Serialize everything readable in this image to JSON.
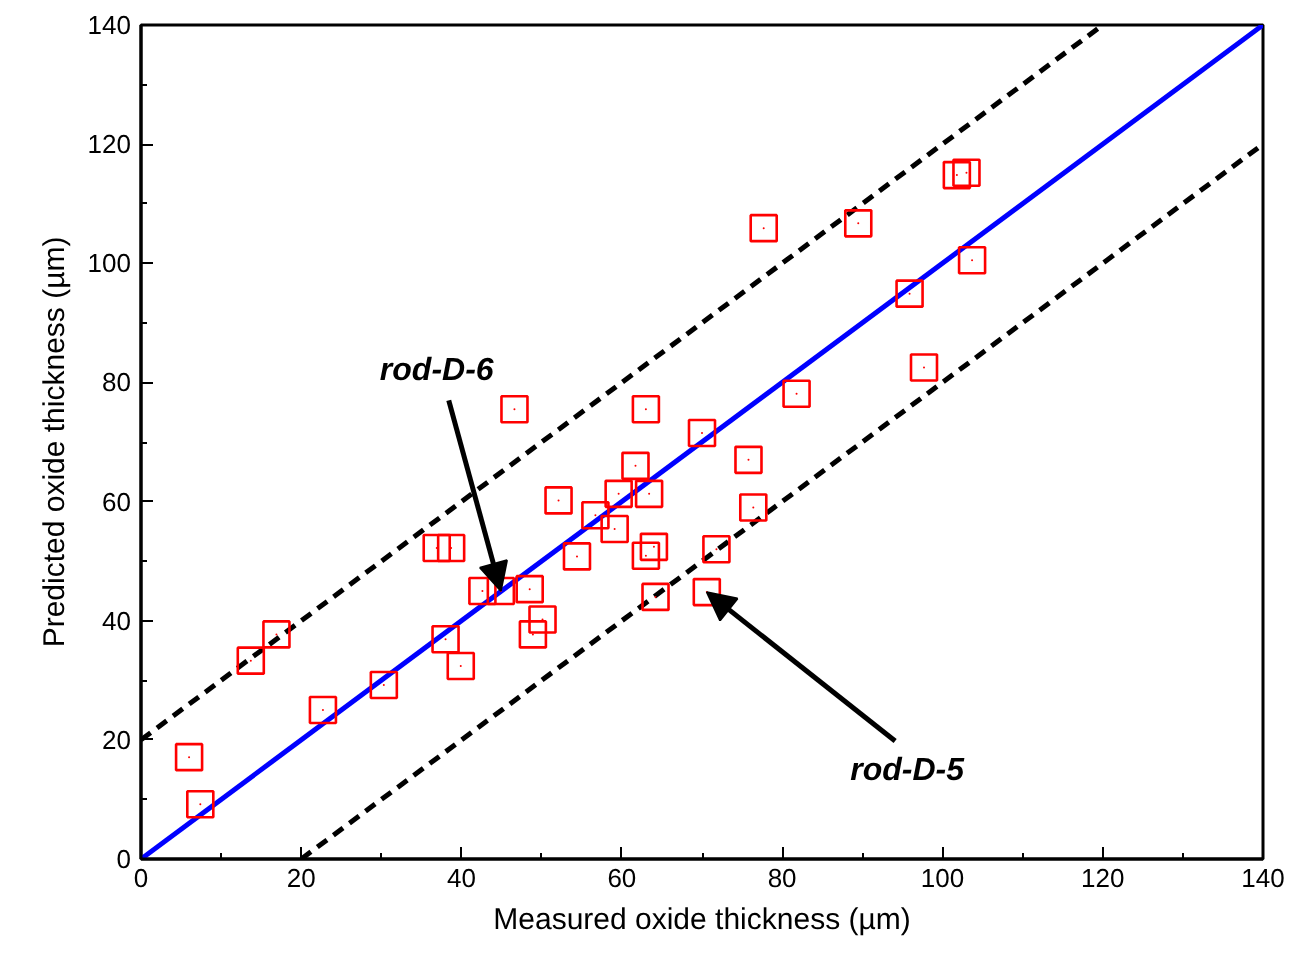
{
  "chart_data": {
    "type": "scatter",
    "xlabel": "Measured oxide thickness (µm)",
    "ylabel": "Predicted oxide thickness (µm)",
    "xlim": [
      0,
      140
    ],
    "ylim": [
      0,
      140
    ],
    "xticks": [
      0,
      20,
      40,
      60,
      80,
      100,
      120,
      140
    ],
    "yticks": [
      0,
      20,
      40,
      60,
      80,
      100,
      120,
      140
    ],
    "grid": false,
    "series": [
      {
        "color": "#ff0000",
        "marker": "square",
        "x": [
          6.0,
          7.4,
          13.7,
          16.9,
          22.7,
          30.3,
          36.9,
          38.7,
          38.0,
          39.9,
          42.6,
          44.9,
          48.5,
          46.6,
          63.0,
          70.0,
          75.8,
          61.7,
          59.6,
          63.4,
          52.1,
          76.4,
          56.7,
          59.1,
          64.0,
          63.0,
          54.4,
          71.8,
          64.2,
          70.6,
          50.1,
          48.9,
          77.7,
          89.5,
          101.8,
          103.0,
          103.7,
          95.9,
          97.7,
          81.8
        ],
        "values": [
          17.1,
          9.2,
          33.3,
          37.7,
          25.0,
          29.2,
          52.2,
          52.2,
          36.9,
          32.4,
          45.0,
          45.0,
          45.3,
          75.5,
          75.5,
          71.5,
          67.0,
          66.0,
          61.3,
          61.3,
          60.2,
          59.0,
          57.7,
          55.4,
          52.4,
          50.9,
          50.8,
          52.0,
          44.0,
          44.8,
          40.2,
          37.7,
          105.9,
          106.7,
          114.8,
          115.2,
          100.5,
          94.9,
          82.5,
          78.1
        ]
      },
      {
        "type": "line",
        "color": "#0000ff",
        "line_style": "solid",
        "x": [
          0,
          140
        ],
        "values": [
          0,
          140
        ]
      },
      {
        "type": "line",
        "color": "#000000",
        "line_style": "dashed",
        "x": [
          0,
          120
        ],
        "values": [
          20,
          140
        ]
      },
      {
        "type": "line",
        "color": "#000000",
        "line_style": "dashed",
        "x": [
          20,
          140
        ],
        "values": [
          0,
          120
        ]
      }
    ],
    "annotations": [
      {
        "text": "rod-D-6",
        "x": 44.9,
        "y": 45.0
      },
      {
        "text": "rod-D-5",
        "x": 70.6,
        "y": 44.8
      }
    ]
  }
}
